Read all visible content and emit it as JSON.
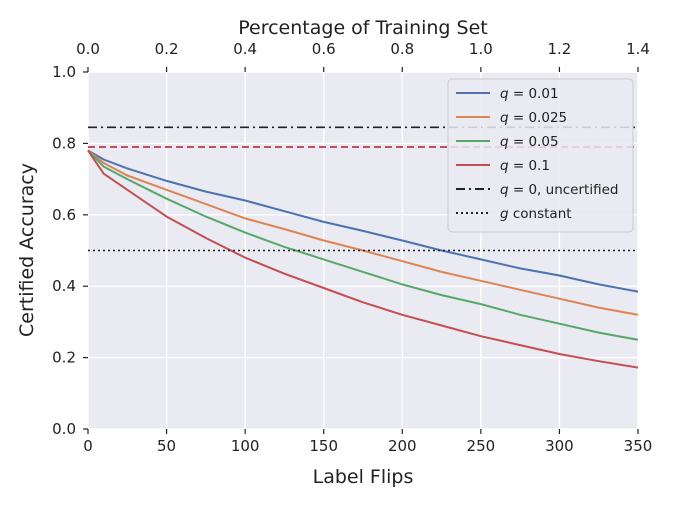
{
  "chart_data": {
    "type": "line",
    "title": "",
    "xlabel": "Label Flips",
    "ylabel": "Certified Accuracy",
    "top_xlabel": "Percentage of Training Set",
    "xlim": [
      0,
      350
    ],
    "ylim": [
      0.0,
      1.0
    ],
    "top_xlim": [
      0.0,
      1.4
    ],
    "xticks": [
      0,
      50,
      100,
      150,
      200,
      250,
      300,
      350
    ],
    "xtick_labels": [
      "0",
      "50",
      "100",
      "150",
      "200",
      "250",
      "300",
      "350"
    ],
    "yticks": [
      0.0,
      0.2,
      0.4,
      0.6,
      0.8,
      1.0
    ],
    "ytick_labels": [
      "0.0",
      "0.2",
      "0.4",
      "0.6",
      "0.8",
      "1.0"
    ],
    "top_xticks": [
      0.0,
      0.2,
      0.4,
      0.6,
      0.8,
      1.0,
      1.2,
      1.4
    ],
    "top_xtick_labels": [
      "0.0",
      "0.2",
      "0.4",
      "0.6",
      "0.8",
      "1.0",
      "1.2",
      "1.4"
    ],
    "grid": true,
    "legend_position": "top-right",
    "background": "#eaeaf2",
    "series": [
      {
        "name": "q = 0.01",
        "color": "#4c72b0",
        "style": "solid",
        "x": [
          0,
          10,
          25,
          50,
          75,
          100,
          125,
          150,
          175,
          200,
          225,
          250,
          275,
          300,
          325,
          350
        ],
        "y": [
          0.78,
          0.755,
          0.73,
          0.695,
          0.665,
          0.64,
          0.61,
          0.58,
          0.555,
          0.528,
          0.5,
          0.475,
          0.45,
          0.43,
          0.405,
          0.385
        ]
      },
      {
        "name": "q = 0.025",
        "color": "#dd8452",
        "style": "solid",
        "x": [
          0,
          10,
          25,
          50,
          75,
          100,
          125,
          150,
          175,
          200,
          225,
          250,
          275,
          300,
          325,
          350
        ],
        "y": [
          0.78,
          0.745,
          0.71,
          0.67,
          0.63,
          0.59,
          0.56,
          0.528,
          0.5,
          0.47,
          0.44,
          0.415,
          0.39,
          0.365,
          0.34,
          0.32
        ]
      },
      {
        "name": "q = 0.05",
        "color": "#55a868",
        "style": "solid",
        "x": [
          0,
          10,
          25,
          50,
          75,
          100,
          125,
          150,
          175,
          200,
          225,
          250,
          275,
          300,
          325,
          350
        ],
        "y": [
          0.78,
          0.735,
          0.7,
          0.645,
          0.595,
          0.55,
          0.51,
          0.475,
          0.44,
          0.405,
          0.375,
          0.35,
          0.32,
          0.295,
          0.27,
          0.25
        ]
      },
      {
        "name": "q = 0.1",
        "color": "#c44e52",
        "style": "solid",
        "x": [
          0,
          10,
          25,
          50,
          75,
          100,
          125,
          150,
          175,
          200,
          225,
          250,
          275,
          300,
          325,
          350
        ],
        "y": [
          0.78,
          0.715,
          0.67,
          0.595,
          0.535,
          0.48,
          0.435,
          0.395,
          0.355,
          0.32,
          0.29,
          0.26,
          0.235,
          0.21,
          0.19,
          0.172
        ]
      },
      {
        "name": "q = 0, uncertified",
        "color": "#222222",
        "style": "dashdot",
        "x": [
          0,
          350
        ],
        "y": [
          0.845,
          0.845
        ]
      },
      {
        "name": "g constant",
        "color": "#222222",
        "style": "dotted",
        "x": [
          0,
          350
        ],
        "y": [
          0.5,
          0.5
        ]
      }
    ],
    "reference_lines": [
      {
        "color": "#c44e52",
        "style": "dashed",
        "y": 0.79
      }
    ],
    "legend": [
      {
        "label_main": "q",
        "label_rest": " = 0.01"
      },
      {
        "label_main": "q",
        "label_rest": " = 0.025"
      },
      {
        "label_main": "q",
        "label_rest": " = 0.05"
      },
      {
        "label_main": "q",
        "label_rest": " = 0.1"
      },
      {
        "label_main": "q",
        "label_rest": " = 0, uncertified"
      },
      {
        "label_main": "g",
        "label_rest": " constant"
      }
    ]
  }
}
